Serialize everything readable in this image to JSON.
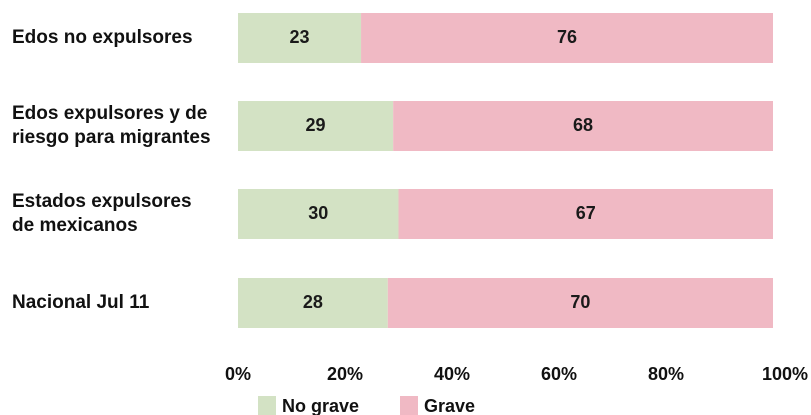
{
  "chart_data": {
    "type": "bar",
    "orientation": "horizontal",
    "stacked": true,
    "categories": [
      [
        "Edos no expulsores"
      ],
      [
        "Edos expulsores y de",
        "riesgo para migrantes"
      ],
      [
        "Estados expulsores",
        "de mexicanos"
      ],
      [
        "Nacional Jul 11"
      ]
    ],
    "series": [
      {
        "name": "No grave",
        "values": [
          23,
          29,
          30,
          28
        ],
        "color": "#d3e2c4"
      },
      {
        "name": "Grave",
        "values": [
          76,
          68,
          67,
          70
        ],
        "color": "#f0b9c4"
      }
    ],
    "xlim": [
      0,
      100
    ],
    "xticks": [
      "0%",
      "20%",
      "40%",
      "60%",
      "80%",
      "100%"
    ],
    "grid": false,
    "legend_position": "bottom-center",
    "data_labels": true
  }
}
